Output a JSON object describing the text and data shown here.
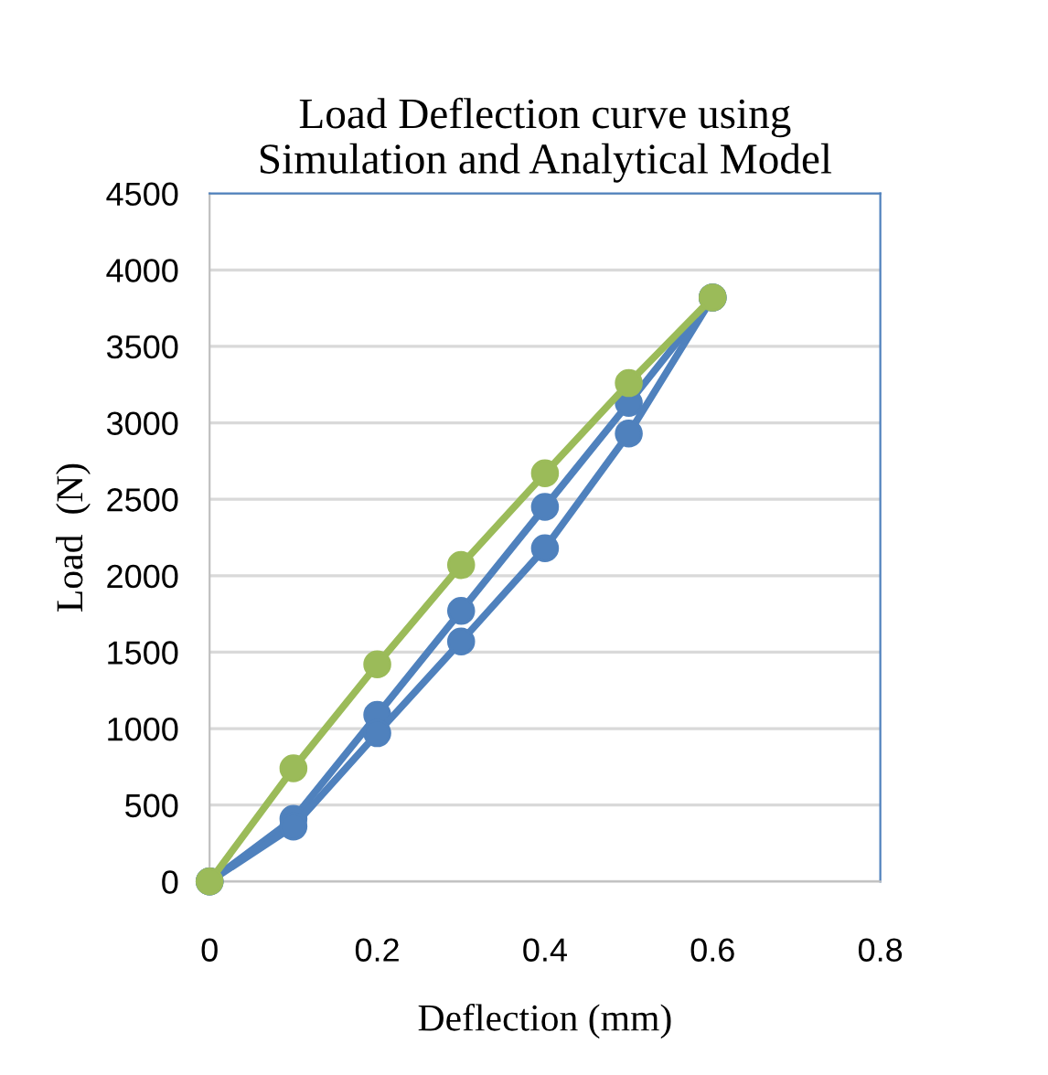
{
  "chart_data": {
    "type": "line",
    "title": "Load Deflection curve using\nSimulation and Analytical Model",
    "xlabel": "Deflection (mm)",
    "ylabel": "Load  (N)",
    "x": [
      0,
      0.1,
      0.2,
      0.3,
      0.4,
      0.5,
      0.6
    ],
    "series": [
      {
        "color": "#4f81bd",
        "values": [
          0,
          410,
          1090,
          1770,
          2450,
          3130,
          3820
        ]
      },
      {
        "color": "#4f81bd",
        "values": [
          0,
          360,
          970,
          1570,
          2180,
          2930,
          3820
        ]
      },
      {
        "color": "#9bbb59",
        "values": [
          0,
          740,
          1420,
          2070,
          2670,
          3260,
          3820
        ]
      }
    ],
    "xlim": [
      0,
      0.8
    ],
    "xticks": [
      0,
      0.2,
      0.4,
      0.6,
      0.8
    ],
    "ylim": [
      0,
      4500
    ],
    "yticks": [
      0,
      500,
      1000,
      1500,
      2000,
      2500,
      3000,
      3500,
      4000,
      4500
    ],
    "grid": "y",
    "marker": "circle",
    "line_style": "solid"
  }
}
